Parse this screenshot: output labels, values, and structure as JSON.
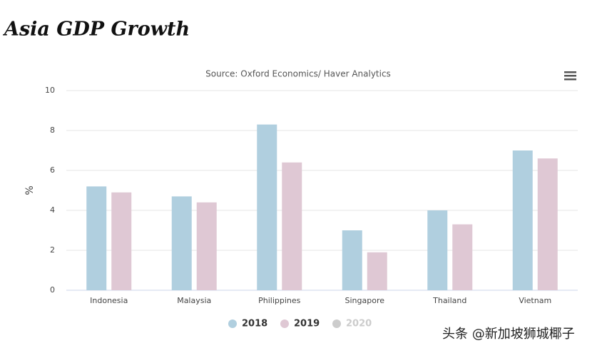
{
  "chart_data": {
    "type": "bar",
    "title": "Asia GDP Growth",
    "subtitle": "Source: Oxford Economics/ Haver Analytics",
    "y_axis_label": "%",
    "categories": [
      "Indonesia",
      "Malaysia",
      "Philippines",
      "Singapore",
      "Thailand",
      "Vietnam"
    ],
    "series": [
      {
        "name": "2018",
        "color": "#b0cfdf",
        "values": [
          5.2,
          4.7,
          8.3,
          3.0,
          4.0,
          7.0
        ]
      },
      {
        "name": "2019",
        "color": "#dfc8d4",
        "values": [
          4.9,
          4.4,
          6.4,
          1.9,
          3.3,
          6.6
        ]
      },
      {
        "name": "2020",
        "color": "#cccccc",
        "visible": false,
        "values": [
          null,
          null,
          null,
          null,
          null,
          null
        ]
      }
    ],
    "ylim": [
      0,
      10
    ],
    "yticks": [
      0,
      2,
      4,
      6,
      8,
      10
    ],
    "grid": true,
    "legend": "bottom",
    "watermark": "头条 @新加坡狮城椰子"
  }
}
